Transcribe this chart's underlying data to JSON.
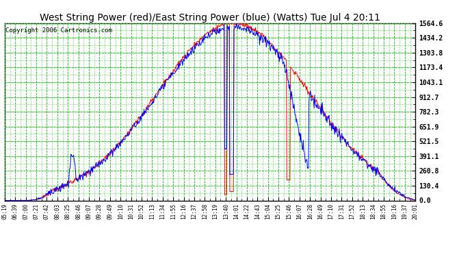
{
  "title": "West String Power (red)/East String Power (blue) (Watts) Tue Jul 4 20:11",
  "copyright": "Copyright 2006 Cartronics.com",
  "yticks": [
    0.0,
    130.4,
    260.8,
    391.1,
    521.5,
    651.9,
    782.3,
    912.7,
    1043.1,
    1173.4,
    1303.8,
    1434.2,
    1564.6
  ],
  "xtick_labels": [
    "05:19",
    "06:39",
    "07:00",
    "07:21",
    "07:42",
    "08:03",
    "08:25",
    "08:46",
    "09:07",
    "09:28",
    "09:49",
    "10:10",
    "10:31",
    "10:52",
    "11:13",
    "11:34",
    "11:55",
    "12:16",
    "12:37",
    "12:58",
    "13:19",
    "13:40",
    "14:01",
    "14:22",
    "14:43",
    "15:04",
    "15:25",
    "15:46",
    "16:07",
    "16:28",
    "16:49",
    "17:10",
    "17:31",
    "17:52",
    "18:13",
    "18:34",
    "18:55",
    "19:16",
    "19:37",
    "20:01"
  ],
  "plot_bg": "#FFFFFF",
  "grid_color": "#00CC00",
  "red_line": "#FF0000",
  "blue_line": "#0000FF",
  "title_fontsize": 10,
  "copyright_fontsize": 6.5,
  "fig_bg": "#FFFFFF"
}
